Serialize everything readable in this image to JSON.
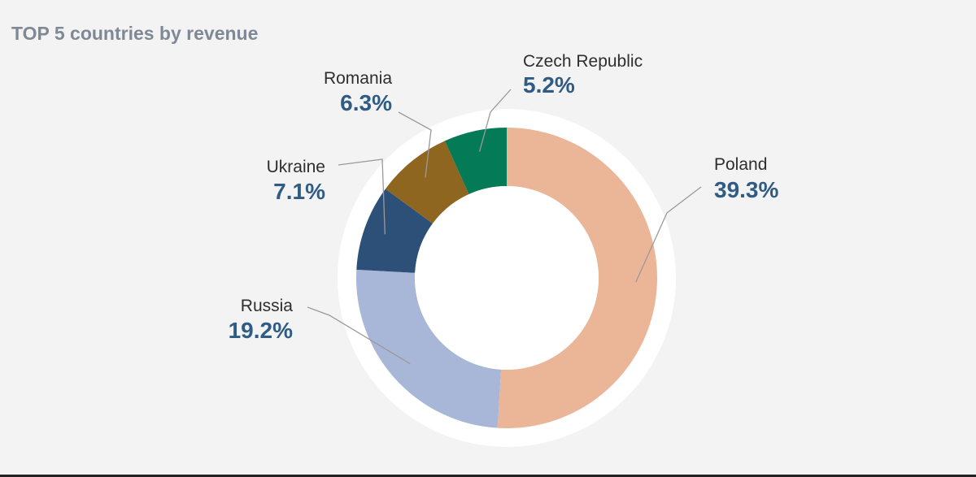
{
  "chart_data": {
    "type": "pie",
    "variant": "donut",
    "title": "TOP 5 countries by revenue",
    "slices": [
      {
        "label": "Poland",
        "value": 39.3,
        "display": "39.3%",
        "color": "#ebb597"
      },
      {
        "label": "Russia",
        "value": 19.2,
        "display": "19.2%",
        "color": "#a8b6d7"
      },
      {
        "label": "Ukraine",
        "value": 7.1,
        "display": "7.1%",
        "color": "#2d5078"
      },
      {
        "label": "Romania",
        "value": 6.3,
        "display": "6.3%",
        "color": "#8e6620"
      },
      {
        "label": "Czech Republic",
        "value": 5.2,
        "display": "5.2%",
        "color": "#047a56"
      }
    ],
    "start_angle_deg": 0,
    "direction": "clockwise"
  }
}
